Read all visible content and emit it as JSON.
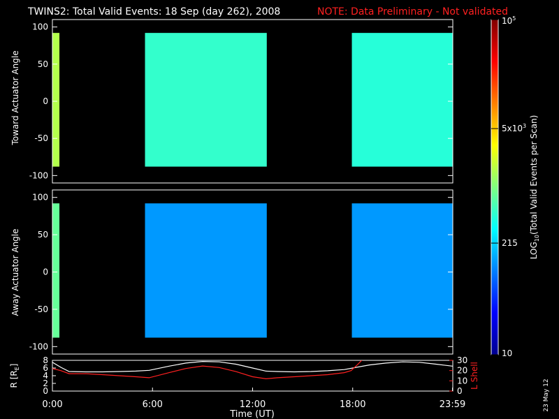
{
  "header": {
    "title": "TWINS2: Total Valid Events: 18 Sep (day 262), 2008",
    "note": "NOTE: Data Preliminary - Not validated"
  },
  "colors": {
    "background": "#000000",
    "axes": "#ffffff",
    "note": "#ff2020",
    "r_line": "#ffffff",
    "l_shell_line": "#ff2020"
  },
  "chart_data": [
    {
      "type": "heatmap",
      "ylabel": "Toward Actuator Angle",
      "ylim": [
        -110,
        110
      ],
      "y_ticks": [
        "100",
        "50",
        "0",
        "-50",
        "-100"
      ],
      "y_tick_values": [
        100,
        50,
        0,
        -50,
        -100
      ],
      "xlim_hours": [
        0,
        24
      ],
      "data_blocks": [
        {
          "start_hours": 0.0,
          "end_hours": 0.42,
          "ymin": -88,
          "ymax": 92,
          "log10_counts": 3.2
        },
        {
          "start_hours": 5.55,
          "end_hours": 12.85,
          "ymin": -88,
          "ymax": 92,
          "log10_counts": 2.7
        },
        {
          "start_hours": 17.95,
          "end_hours": 23.99,
          "ymin": -88,
          "ymax": 92,
          "log10_counts": 2.65
        }
      ]
    },
    {
      "type": "heatmap",
      "ylabel": "Away Actuator Angle",
      "ylim": [
        -110,
        110
      ],
      "y_ticks": [
        "100",
        "50",
        "0",
        "-50",
        "-100"
      ],
      "y_tick_values": [
        100,
        50,
        0,
        -50,
        -100
      ],
      "xlim_hours": [
        0,
        24
      ],
      "data_blocks": [
        {
          "start_hours": 0.0,
          "end_hours": 0.42,
          "ymin": -88,
          "ymax": 92,
          "log10_counts": 2.9
        },
        {
          "start_hours": 5.55,
          "end_hours": 12.85,
          "ymin": -88,
          "ymax": 92,
          "log10_counts": 2.1
        },
        {
          "start_hours": 17.95,
          "end_hours": 23.99,
          "ymin": -88,
          "ymax": 92,
          "log10_counts": 2.1
        }
      ]
    },
    {
      "type": "line",
      "ylabel": "R [R",
      "ylabel_sub": "E",
      "ylabel_close": "]",
      "ylim": [
        0,
        8
      ],
      "y_ticks": [
        "8",
        "6",
        "4",
        "2",
        "0"
      ],
      "y_tick_values": [
        8,
        6,
        4,
        2,
        0
      ],
      "y2label": "L Shell",
      "y2lim": [
        0,
        30
      ],
      "y2_ticks": [
        "30",
        "20",
        "10",
        "0"
      ],
      "y2_tick_values": [
        30,
        20,
        10,
        0
      ],
      "xlabel": "Time (UT)",
      "x_ticks": [
        "0:00",
        "6:00",
        "12:00",
        "18:00",
        "23:59"
      ],
      "x_tick_values": [
        0,
        6,
        12,
        18,
        23.98
      ],
      "series": [
        {
          "axis": "left",
          "color": "#ffffff",
          "x": [
            0,
            0.5,
            1.0,
            2.0,
            3.0,
            4.0,
            5.0,
            5.8,
            7.0,
            8.0,
            9.0,
            10.0,
            11.0,
            12.0,
            12.8,
            13.5,
            14.5,
            15.5,
            16.5,
            17.5,
            18.0,
            19.0,
            20.0,
            21.0,
            22.0,
            23.0,
            23.98
          ],
          "y": [
            7.5,
            6.2,
            5.1,
            5.0,
            5.0,
            5.1,
            5.2,
            5.4,
            6.5,
            7.3,
            7.7,
            7.6,
            7.0,
            6.0,
            5.2,
            5.1,
            5.0,
            5.1,
            5.3,
            5.6,
            6.0,
            6.8,
            7.3,
            7.6,
            7.5,
            7.0,
            6.5
          ]
        },
        {
          "axis": "right",
          "color": "#ff2020",
          "x": [
            0,
            0.5,
            1.0,
            2.0,
            3.0,
            4.0,
            5.0,
            5.8,
            7.0,
            8.0,
            9.0,
            10.0,
            11.0,
            12.0,
            12.8,
            13.5,
            14.5,
            15.5,
            16.5,
            17.5,
            17.9,
            18.3,
            18.6
          ],
          "y": [
            22,
            20,
            17,
            17,
            16,
            15,
            14,
            13,
            18,
            22,
            24.5,
            23,
            19,
            14,
            12,
            13,
            14,
            15,
            16,
            18,
            20,
            26,
            31
          ]
        }
      ]
    }
  ],
  "colorbar": {
    "label": "LOG",
    "label_sub": "10",
    "label_rest": "(Total Valid Events per Scan)",
    "min": 10,
    "max": 100000,
    "ticks": [
      {
        "base": "10",
        "exp": "5",
        "value": 100000
      },
      {
        "base": "5x10",
        "exp": "3",
        "value": 5000
      },
      {
        "base": "215",
        "exp": "",
        "value": 215
      },
      {
        "base": "10",
        "exp": "",
        "value": 10
      }
    ]
  },
  "footer": {
    "date_stamp": "23 May 12"
  }
}
